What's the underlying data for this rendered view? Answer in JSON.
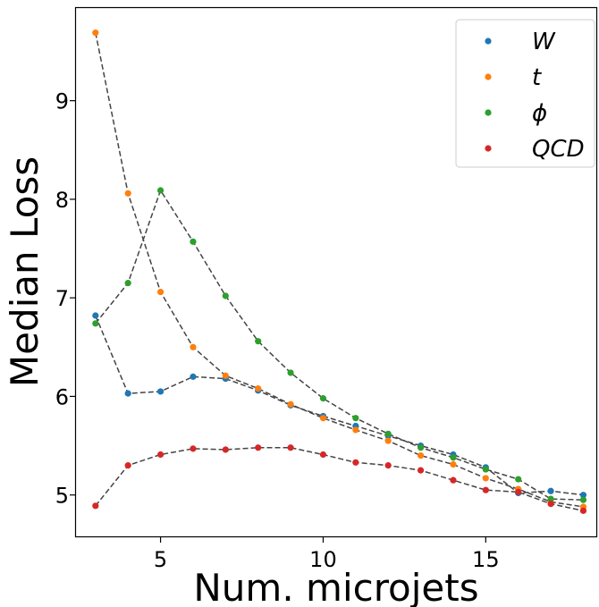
{
  "chart_data": {
    "type": "scatter",
    "xlabel": "Num. microjets",
    "ylabel": "Median Loss",
    "xlim": [
      2.4,
      18.4
    ],
    "ylim": [
      4.58,
      9.94
    ],
    "x_ticks": [
      5,
      10,
      15
    ],
    "y_ticks": [
      5,
      6,
      7,
      8,
      9
    ],
    "grid": false,
    "legend_position": "top-right",
    "line_style": "dashed",
    "line_color": "#444444",
    "x": [
      3,
      4,
      5,
      6,
      7,
      8,
      9,
      10,
      11,
      12,
      13,
      14,
      15,
      16,
      17,
      18
    ],
    "series": [
      {
        "name": "W",
        "color": "#1f77b4",
        "values": [
          6.82,
          6.03,
          6.05,
          6.2,
          6.18,
          6.06,
          5.91,
          5.8,
          5.7,
          5.6,
          5.5,
          5.41,
          5.28,
          5.02,
          5.04,
          5.0
        ]
      },
      {
        "name": "t",
        "color": "#ff7f0e",
        "values": [
          9.69,
          8.06,
          7.06,
          6.5,
          6.21,
          6.08,
          5.92,
          5.78,
          5.66,
          5.55,
          5.4,
          5.31,
          5.17,
          5.06,
          4.93,
          4.88
        ]
      },
      {
        "name": "ϕ",
        "color": "#2ca02c",
        "values": [
          6.74,
          7.15,
          8.09,
          7.57,
          7.02,
          6.56,
          6.24,
          5.98,
          5.78,
          5.62,
          5.48,
          5.38,
          5.26,
          5.16,
          4.96,
          4.95
        ]
      },
      {
        "name": "QCD",
        "color": "#d62728",
        "values": [
          4.89,
          5.3,
          5.41,
          5.47,
          5.46,
          5.48,
          5.48,
          5.41,
          5.33,
          5.3,
          5.25,
          5.15,
          5.05,
          5.03,
          4.91,
          4.84
        ]
      }
    ]
  }
}
